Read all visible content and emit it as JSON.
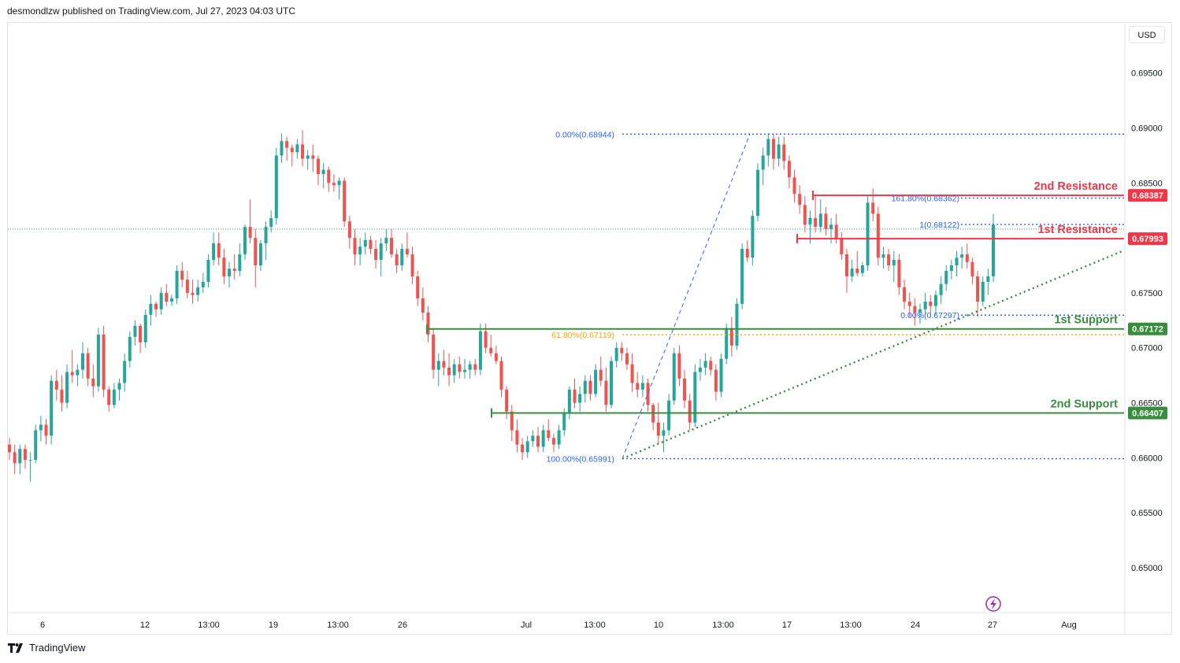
{
  "header": {
    "published_by": "desmondlzw published on TradingView.com, Jul 27, 2023 04:03 UTC"
  },
  "currency_button": "USD",
  "footer": {
    "brand": "TradingView"
  },
  "colors": {
    "up": "#26a69a",
    "down": "#ef5350",
    "resistance": "#f23645",
    "support": "#388e3c",
    "fib": "#2962ff",
    "fib_gold": "#f7a600",
    "grid_text": "#131722"
  },
  "icons": [
    "tradingview-logo-icon",
    "lightning-icon"
  ],
  "chart_data": {
    "type": "candlestick",
    "y_ticks": [
      "0.69500",
      "0.69000",
      "0.68500",
      "0.68000",
      "0.67500",
      "0.67000",
      "0.66500",
      "0.66000",
      "0.65500",
      "0.65000"
    ],
    "y_tick_values": [
      0.695,
      0.69,
      0.685,
      0.68,
      0.675,
      0.67,
      0.665,
      0.66,
      0.655,
      0.65
    ],
    "x_ticks": [
      "6",
      "12",
      "13:00",
      "19",
      "13:00",
      "26",
      "Jul",
      "13:00",
      "10",
      "13:00",
      "17",
      "13:00",
      "24",
      "27",
      "Aug"
    ],
    "levels": [
      {
        "label": "2nd Resistance",
        "value": 0.68387,
        "price_tag": "0.68387",
        "kind": "resistance"
      },
      {
        "label": "1st Resistance",
        "value": 0.67993,
        "price_tag": "0.67993",
        "kind": "resistance"
      },
      {
        "label": "1st Support",
        "value": 0.67172,
        "price_tag": "0.67172",
        "kind": "support"
      },
      {
        "label": "2nd Support",
        "value": 0.66407,
        "price_tag": "0.66407",
        "kind": "support"
      }
    ],
    "fib_labels": [
      {
        "text": "0.00%(0.68944)",
        "value": 0.68944
      },
      {
        "text": "61.80%(0.67119)",
        "value": 0.67119
      },
      {
        "text": "100.00%(0.65991)",
        "value": 0.65991
      },
      {
        "text": "161.80%(0.68362)",
        "value": 0.68362
      },
      {
        "text": "1(0.68122)",
        "value": 0.68122
      },
      {
        "text": "0.00%(0.67297)",
        "value": 0.67297
      }
    ],
    "current_price": 0.6808,
    "ohlc": [
      [
        0.6612,
        0.6618,
        0.6598,
        0.6605
      ],
      [
        0.6605,
        0.6612,
        0.6585,
        0.6595
      ],
      [
        0.6595,
        0.6612,
        0.6585,
        0.6608
      ],
      [
        0.6608,
        0.6612,
        0.659,
        0.6598
      ],
      [
        0.6598,
        0.6605,
        0.6578,
        0.6598
      ],
      [
        0.6598,
        0.663,
        0.6595,
        0.6625
      ],
      [
        0.6625,
        0.6638,
        0.6615,
        0.663
      ],
      [
        0.663,
        0.6635,
        0.6612,
        0.662
      ],
      [
        0.662,
        0.6675,
        0.6612,
        0.667
      ],
      [
        0.667,
        0.668,
        0.6652,
        0.6662
      ],
      [
        0.6662,
        0.6675,
        0.6642,
        0.665
      ],
      [
        0.665,
        0.6685,
        0.6645,
        0.6678
      ],
      [
        0.6678,
        0.6698,
        0.6668,
        0.6675
      ],
      [
        0.6675,
        0.6685,
        0.6665,
        0.668
      ],
      [
        0.668,
        0.6705,
        0.6672,
        0.6695
      ],
      [
        0.6695,
        0.67,
        0.6665,
        0.6672
      ],
      [
        0.6672,
        0.6685,
        0.6655,
        0.6665
      ],
      [
        0.6665,
        0.6718,
        0.666,
        0.6712
      ],
      [
        0.6712,
        0.672,
        0.6655,
        0.6662
      ],
      [
        0.6662,
        0.6665,
        0.6642,
        0.6648
      ],
      [
        0.6648,
        0.6668,
        0.6645,
        0.6662
      ],
      [
        0.6662,
        0.6672,
        0.6652,
        0.6668
      ],
      [
        0.6668,
        0.6695,
        0.666,
        0.6688
      ],
      [
        0.6688,
        0.6715,
        0.6682,
        0.671
      ],
      [
        0.671,
        0.6725,
        0.6702,
        0.672
      ],
      [
        0.672,
        0.6722,
        0.6695,
        0.6705
      ],
      [
        0.6705,
        0.6735,
        0.67,
        0.673
      ],
      [
        0.673,
        0.6748,
        0.672,
        0.674
      ],
      [
        0.674,
        0.6742,
        0.6728,
        0.6735
      ],
      [
        0.6735,
        0.6755,
        0.673,
        0.675
      ],
      [
        0.675,
        0.6758,
        0.6738,
        0.6742
      ],
      [
        0.6742,
        0.6748,
        0.6738,
        0.6745
      ],
      [
        0.6745,
        0.6775,
        0.674,
        0.677
      ],
      [
        0.677,
        0.6778,
        0.6755,
        0.6762
      ],
      [
        0.6762,
        0.677,
        0.6745,
        0.675
      ],
      [
        0.675,
        0.6762,
        0.674,
        0.6748
      ],
      [
        0.6748,
        0.6762,
        0.6742,
        0.6755
      ],
      [
        0.6755,
        0.6768,
        0.675,
        0.676
      ],
      [
        0.676,
        0.6785,
        0.6755,
        0.678
      ],
      [
        0.678,
        0.6805,
        0.6775,
        0.6795
      ],
      [
        0.6795,
        0.6805,
        0.6775,
        0.6782
      ],
      [
        0.6782,
        0.679,
        0.6758,
        0.6765
      ],
      [
        0.6765,
        0.6778,
        0.6755,
        0.6772
      ],
      [
        0.6772,
        0.6785,
        0.6762,
        0.677
      ],
      [
        0.677,
        0.6795,
        0.6765,
        0.6785
      ],
      [
        0.6785,
        0.6812,
        0.678,
        0.681
      ],
      [
        0.681,
        0.6835,
        0.6795,
        0.68
      ],
      [
        0.68,
        0.6808,
        0.6755,
        0.6775
      ],
      [
        0.6775,
        0.6798,
        0.677,
        0.6795
      ],
      [
        0.6795,
        0.6815,
        0.678,
        0.681
      ],
      [
        0.681,
        0.6825,
        0.6805,
        0.6818
      ],
      [
        0.6818,
        0.6882,
        0.6812,
        0.6875
      ],
      [
        0.6875,
        0.6895,
        0.6868,
        0.6888
      ],
      [
        0.6888,
        0.6892,
        0.687,
        0.6882
      ],
      [
        0.6882,
        0.6885,
        0.6865,
        0.6878
      ],
      [
        0.6878,
        0.689,
        0.6872,
        0.6885
      ],
      [
        0.6885,
        0.6898,
        0.6865,
        0.6872
      ],
      [
        0.6872,
        0.688,
        0.6862,
        0.6875
      ],
      [
        0.6875,
        0.6885,
        0.686,
        0.6872
      ],
      [
        0.6872,
        0.6875,
        0.6848,
        0.6858
      ],
      [
        0.6858,
        0.6868,
        0.6845,
        0.6862
      ],
      [
        0.6862,
        0.6865,
        0.6842,
        0.685
      ],
      [
        0.685,
        0.6858,
        0.6842,
        0.6848
      ],
      [
        0.6848,
        0.6855,
        0.6835,
        0.6852
      ],
      [
        0.6852,
        0.6855,
        0.681,
        0.6815
      ],
      [
        0.6815,
        0.682,
        0.679,
        0.68
      ],
      [
        0.68,
        0.6808,
        0.6775,
        0.6785
      ],
      [
        0.6785,
        0.68,
        0.6775,
        0.6792
      ],
      [
        0.6792,
        0.6805,
        0.6785,
        0.6798
      ],
      [
        0.6798,
        0.6802,
        0.6785,
        0.679
      ],
      [
        0.679,
        0.6798,
        0.6772,
        0.678
      ],
      [
        0.678,
        0.68,
        0.6765,
        0.6795
      ],
      [
        0.6795,
        0.6808,
        0.6788,
        0.68
      ],
      [
        0.68,
        0.6808,
        0.6782,
        0.6785
      ],
      [
        0.6785,
        0.679,
        0.6768,
        0.6775
      ],
      [
        0.6775,
        0.6795,
        0.677,
        0.679
      ],
      [
        0.679,
        0.6805,
        0.6782,
        0.6785
      ],
      [
        0.6785,
        0.6792,
        0.6758,
        0.6765
      ],
      [
        0.6765,
        0.677,
        0.6738,
        0.6745
      ],
      [
        0.6745,
        0.6755,
        0.6725,
        0.6732
      ],
      [
        0.6732,
        0.6738,
        0.6705,
        0.6712
      ],
      [
        0.6712,
        0.6718,
        0.6672,
        0.668
      ],
      [
        0.668,
        0.6695,
        0.6665,
        0.6688
      ],
      [
        0.6688,
        0.6698,
        0.6675,
        0.6682
      ],
      [
        0.6682,
        0.6695,
        0.6665,
        0.6675
      ],
      [
        0.6675,
        0.669,
        0.6668,
        0.6685
      ],
      [
        0.6685,
        0.6692,
        0.6672,
        0.6678
      ],
      [
        0.6678,
        0.669,
        0.6672,
        0.668
      ],
      [
        0.668,
        0.6688,
        0.6672,
        0.6685
      ],
      [
        0.6685,
        0.669,
        0.6675,
        0.668
      ],
      [
        0.668,
        0.6722,
        0.6675,
        0.6715
      ],
      [
        0.6715,
        0.6722,
        0.6695,
        0.67
      ],
      [
        0.67,
        0.6712,
        0.6692,
        0.6695
      ],
      [
        0.6695,
        0.6702,
        0.6685,
        0.6688
      ],
      [
        0.6688,
        0.6692,
        0.6655,
        0.6662
      ],
      [
        0.6662,
        0.6665,
        0.6635,
        0.6642
      ],
      [
        0.6642,
        0.6648,
        0.6615,
        0.6625
      ],
      [
        0.6625,
        0.6635,
        0.6605,
        0.6612
      ],
      [
        0.6612,
        0.6618,
        0.6598,
        0.6605
      ],
      [
        0.6605,
        0.662,
        0.66,
        0.6615
      ],
      [
        0.6615,
        0.6625,
        0.661,
        0.662
      ],
      [
        0.662,
        0.6628,
        0.6605,
        0.661
      ],
      [
        0.661,
        0.663,
        0.6605,
        0.6625
      ],
      [
        0.6625,
        0.6635,
        0.6615,
        0.6618
      ],
      [
        0.6618,
        0.6622,
        0.6605,
        0.6612
      ],
      [
        0.6612,
        0.663,
        0.6608,
        0.6625
      ],
      [
        0.6625,
        0.6645,
        0.662,
        0.664
      ],
      [
        0.664,
        0.6665,
        0.6635,
        0.6662
      ],
      [
        0.6662,
        0.6672,
        0.6645,
        0.665
      ],
      [
        0.665,
        0.6665,
        0.6642,
        0.6658
      ],
      [
        0.6658,
        0.6675,
        0.665,
        0.667
      ],
      [
        0.667,
        0.6675,
        0.6652,
        0.6658
      ],
      [
        0.6658,
        0.6685,
        0.6655,
        0.668
      ],
      [
        0.668,
        0.6692,
        0.6665,
        0.667
      ],
      [
        0.667,
        0.6682,
        0.6642,
        0.6648
      ],
      [
        0.6648,
        0.6692,
        0.6645,
        0.6688
      ],
      [
        0.6688,
        0.6705,
        0.6682,
        0.67
      ],
      [
        0.67,
        0.6705,
        0.6688,
        0.6695
      ],
      [
        0.6695,
        0.67,
        0.668,
        0.6685
      ],
      [
        0.6685,
        0.6695,
        0.666,
        0.6668
      ],
      [
        0.6668,
        0.6678,
        0.6655,
        0.6662
      ],
      [
        0.6662,
        0.6675,
        0.6655,
        0.6668
      ],
      [
        0.6668,
        0.6672,
        0.6642,
        0.6648
      ],
      [
        0.6648,
        0.665,
        0.6625,
        0.6632
      ],
      [
        0.6632,
        0.665,
        0.6612,
        0.662
      ],
      [
        0.662,
        0.6632,
        0.6605,
        0.6625
      ],
      [
        0.6625,
        0.6658,
        0.662,
        0.6652
      ],
      [
        0.6652,
        0.67,
        0.6648,
        0.6695
      ],
      [
        0.6695,
        0.6702,
        0.6665,
        0.6672
      ],
      [
        0.6672,
        0.668,
        0.6645,
        0.6652
      ],
      [
        0.6652,
        0.6658,
        0.6625,
        0.6632
      ],
      [
        0.6632,
        0.6685,
        0.6628,
        0.6678
      ],
      [
        0.6678,
        0.669,
        0.667,
        0.6682
      ],
      [
        0.6682,
        0.6695,
        0.6675,
        0.6688
      ],
      [
        0.6688,
        0.6692,
        0.6675,
        0.668
      ],
      [
        0.668,
        0.6685,
        0.6652,
        0.666
      ],
      [
        0.666,
        0.6695,
        0.6655,
        0.669
      ],
      [
        0.669,
        0.6722,
        0.6685,
        0.6718
      ],
      [
        0.6718,
        0.6728,
        0.6692,
        0.6702
      ],
      [
        0.6702,
        0.6745,
        0.6698,
        0.674
      ],
      [
        0.674,
        0.6795,
        0.6735,
        0.679
      ],
      [
        0.679,
        0.6798,
        0.6778,
        0.6782
      ],
      [
        0.6782,
        0.6825,
        0.6775,
        0.682
      ],
      [
        0.682,
        0.6868,
        0.6815,
        0.6862
      ],
      [
        0.6862,
        0.6882,
        0.6848,
        0.6875
      ],
      [
        0.6875,
        0.6895,
        0.6865,
        0.689
      ],
      [
        0.689,
        0.6894,
        0.6862,
        0.6872
      ],
      [
        0.6872,
        0.6892,
        0.6865,
        0.6885
      ],
      [
        0.6885,
        0.6892,
        0.6862,
        0.687
      ],
      [
        0.687,
        0.6875,
        0.6845,
        0.6855
      ],
      [
        0.6855,
        0.6862,
        0.6832,
        0.684
      ],
      [
        0.684,
        0.6848,
        0.6822,
        0.683
      ],
      [
        0.683,
        0.6838,
        0.6805,
        0.6812
      ],
      [
        0.6812,
        0.6825,
        0.6795,
        0.6818
      ],
      [
        0.6818,
        0.6838,
        0.6805,
        0.681
      ],
      [
        0.681,
        0.6835,
        0.6805,
        0.6822
      ],
      [
        0.6822,
        0.6828,
        0.6802,
        0.6808
      ],
      [
        0.6808,
        0.6818,
        0.6795,
        0.6812
      ],
      [
        0.6812,
        0.6822,
        0.6795,
        0.68
      ],
      [
        0.68,
        0.6805,
        0.678,
        0.6785
      ],
      [
        0.6785,
        0.679,
        0.675,
        0.6765
      ],
      [
        0.6765,
        0.678,
        0.676,
        0.6772
      ],
      [
        0.6772,
        0.6788,
        0.6765,
        0.6768
      ],
      [
        0.6768,
        0.6778,
        0.6765,
        0.6775
      ],
      [
        0.6775,
        0.6838,
        0.677,
        0.6832
      ],
      [
        0.6832,
        0.6845,
        0.6815,
        0.6822
      ],
      [
        0.6822,
        0.6828,
        0.6775,
        0.6782
      ],
      [
        0.6782,
        0.6792,
        0.6772,
        0.6785
      ],
      [
        0.6785,
        0.679,
        0.677,
        0.6775
      ],
      [
        0.6775,
        0.6788,
        0.676,
        0.678
      ],
      [
        0.678,
        0.6785,
        0.6748,
        0.6755
      ],
      [
        0.6755,
        0.6762,
        0.6735,
        0.6742
      ],
      [
        0.6742,
        0.675,
        0.6728,
        0.6738
      ],
      [
        0.6738,
        0.6745,
        0.672,
        0.6732
      ],
      [
        0.6732,
        0.674,
        0.6722,
        0.6735
      ],
      [
        0.6735,
        0.675,
        0.673,
        0.6742
      ],
      [
        0.6742,
        0.6748,
        0.6728,
        0.6738
      ],
      [
        0.6738,
        0.6752,
        0.673,
        0.6748
      ],
      [
        0.6748,
        0.6765,
        0.674,
        0.6758
      ],
      [
        0.6758,
        0.6775,
        0.6752,
        0.677
      ],
      [
        0.677,
        0.678,
        0.6762,
        0.6775
      ],
      [
        0.6775,
        0.6788,
        0.6765,
        0.6782
      ],
      [
        0.6782,
        0.6792,
        0.6772,
        0.6785
      ],
      [
        0.6785,
        0.6795,
        0.6772,
        0.6778
      ],
      [
        0.6778,
        0.6782,
        0.6758,
        0.6765
      ],
      [
        0.6765,
        0.677,
        0.6728,
        0.6742
      ],
      [
        0.6742,
        0.6765,
        0.6738,
        0.676
      ],
      [
        0.676,
        0.6772,
        0.6748,
        0.6765
      ],
      [
        0.6765,
        0.6822,
        0.676,
        0.6812
      ]
    ]
  }
}
